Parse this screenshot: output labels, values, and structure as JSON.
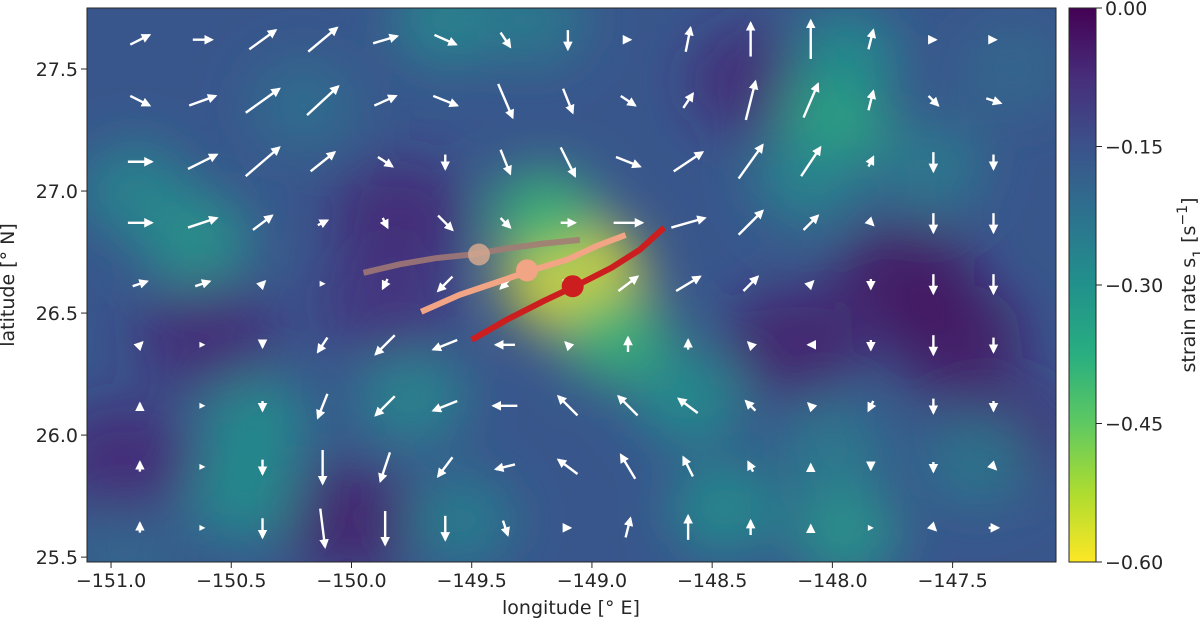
{
  "chart_data": {
    "type": "heatmap",
    "title": "",
    "xlabel": "longitude [° E]",
    "ylabel": "latitude [° N]",
    "xlim": [
      -151.1,
      -147.07
    ],
    "ylim": [
      25.48,
      27.75
    ],
    "xticks": [
      -151.0,
      -150.5,
      -150.0,
      -149.5,
      -149.0,
      -148.5,
      -148.0,
      -147.5
    ],
    "xtick_labels": [
      "−151.0",
      "−150.5",
      "−150.0",
      "−149.5",
      "−149.0",
      "−148.5",
      "−148.0",
      "−147.5"
    ],
    "yticks": [
      25.5,
      26.0,
      26.5,
      27.0,
      27.5
    ],
    "ytick_labels": [
      "25.5",
      "26.0",
      "26.5",
      "27.0",
      "27.5"
    ],
    "colormap": "viridis_r",
    "colorbar": {
      "label": "strain rate s₁ [s⁻¹]",
      "label_parts": [
        "strain rate s",
        "1",
        " [s",
        "−1",
        "]"
      ],
      "range": [
        -0.6,
        0.0
      ],
      "ticks": [
        0.0,
        -0.15,
        -0.3,
        -0.45,
        -0.6
      ],
      "tick_labels": [
        "0.00",
        "−0.15",
        "−0.30",
        "−0.45",
        "−0.60"
      ]
    },
    "heatmap_blobs": [
      {
        "lon": -149.08,
        "lat": 26.65,
        "value": -0.58
      },
      {
        "lon": -149.2,
        "lat": 26.9,
        "value": -0.4
      },
      {
        "lon": -148.9,
        "lat": 26.4,
        "value": -0.4
      },
      {
        "lon": -148.0,
        "lat": 27.3,
        "value": -0.38
      },
      {
        "lon": -147.95,
        "lat": 27.55,
        "value": -0.3
      },
      {
        "lon": -148.1,
        "lat": 27.05,
        "value": -0.28
      },
      {
        "lon": -150.4,
        "lat": 26.05,
        "value": -0.3
      },
      {
        "lon": -150.45,
        "lat": 25.75,
        "value": -0.3
      },
      {
        "lon": -150.65,
        "lat": 26.8,
        "value": -0.32
      },
      {
        "lon": -150.9,
        "lat": 27.0,
        "value": -0.28
      },
      {
        "lon": -149.6,
        "lat": 27.7,
        "value": -0.28
      },
      {
        "lon": -149.25,
        "lat": 27.7,
        "value": -0.25
      },
      {
        "lon": -148.6,
        "lat": 26.15,
        "value": -0.3
      },
      {
        "lon": -148.45,
        "lat": 25.7,
        "value": -0.3
      },
      {
        "lon": -148.0,
        "lat": 25.95,
        "value": -0.25
      },
      {
        "lon": -147.95,
        "lat": 25.6,
        "value": -0.32
      },
      {
        "lon": -149.75,
        "lat": 26.15,
        "value": -0.28
      },
      {
        "lon": -149.55,
        "lat": 25.65,
        "value": -0.26
      },
      {
        "lon": -147.6,
        "lat": 27.1,
        "value": -0.25
      },
      {
        "lon": -147.4,
        "lat": 25.9,
        "value": -0.25
      },
      {
        "lon": -150.2,
        "lat": 27.35,
        "value": -0.22
      },
      {
        "lon": -147.25,
        "lat": 27.5,
        "value": -0.2
      },
      {
        "lon": -150.95,
        "lat": 25.5,
        "value": -0.2
      }
    ],
    "heatmap_lows": [
      {
        "lon": -147.5,
        "lat": 26.4,
        "value": -0.02
      },
      {
        "lon": -147.7,
        "lat": 26.65,
        "value": -0.02
      },
      {
        "lon": -148.15,
        "lat": 26.38,
        "value": -0.04
      },
      {
        "lon": -149.8,
        "lat": 26.9,
        "value": -0.06
      },
      {
        "lon": -148.3,
        "lat": 27.45,
        "value": -0.06
      },
      {
        "lon": -150.95,
        "lat": 25.9,
        "value": -0.06
      },
      {
        "lon": -150.6,
        "lat": 26.4,
        "value": -0.06
      },
      {
        "lon": -150.0,
        "lat": 25.65,
        "value": -0.04
      },
      {
        "lon": -149.85,
        "lat": 26.55,
        "value": -0.08
      },
      {
        "lon": -147.3,
        "lat": 26.0,
        "value": -0.06
      }
    ],
    "vector_field": {
      "lons": [
        -150.88,
        -150.62,
        -150.37,
        -150.12,
        -149.86,
        -149.61,
        -149.36,
        -149.1,
        -148.85,
        -148.6,
        -148.34,
        -148.09,
        -147.84,
        -147.58,
        -147.33
      ],
      "lats": [
        27.62,
        27.37,
        27.12,
        26.87,
        26.62,
        26.37,
        26.12,
        25.87,
        25.62
      ],
      "scale": 0.4,
      "u": [
        [
          0.4,
          0.4,
          0.55,
          0.6,
          0.5,
          0.45,
          0.2,
          0.0,
          0.1,
          0.1,
          0.0,
          0.0,
          0.1,
          0.1,
          0.1
        ],
        [
          0.4,
          0.55,
          0.7,
          0.65,
          0.45,
          0.5,
          0.3,
          0.2,
          0.3,
          0.2,
          0.2,
          0.3,
          0.1,
          0.2,
          0.3
        ],
        [
          0.5,
          0.6,
          0.7,
          0.5,
          0.3,
          0.0,
          0.2,
          0.3,
          0.5,
          0.6,
          0.5,
          0.4,
          0.1,
          0.0,
          0.0
        ],
        [
          0.5,
          0.6,
          0.4,
          0.2,
          0.1,
          0.3,
          0.2,
          0.3,
          0.6,
          0.7,
          0.5,
          0.3,
          0.1,
          0.0,
          0.0
        ],
        [
          0.3,
          0.3,
          0.1,
          0.0,
          -0.1,
          -0.3,
          -0.2,
          0.1,
          0.4,
          0.5,
          0.3,
          0.1,
          0.0,
          0.0,
          0.0
        ],
        [
          0.1,
          0.0,
          0.0,
          -0.2,
          -0.4,
          -0.5,
          -0.4,
          -0.1,
          0.0,
          0.0,
          -0.1,
          -0.1,
          0.0,
          0.0,
          0.0
        ],
        [
          0.0,
          0.0,
          0.0,
          -0.2,
          -0.4,
          -0.5,
          -0.5,
          -0.4,
          -0.4,
          -0.4,
          -0.2,
          -0.1,
          -0.1,
          0.0,
          0.0
        ],
        [
          0.0,
          0.0,
          0.0,
          0.0,
          -0.2,
          -0.3,
          -0.4,
          -0.4,
          -0.3,
          -0.2,
          -0.1,
          0.0,
          0.0,
          0.0,
          0.1
        ],
        [
          0.0,
          0.0,
          0.0,
          0.1,
          0.0,
          0.0,
          0.1,
          0.1,
          0.1,
          0.0,
          0.0,
          0.0,
          0.0,
          0.1,
          0.2
        ]
      ],
      "v": [
        [
          0.2,
          0.0,
          0.4,
          0.5,
          0.15,
          -0.2,
          -0.3,
          -0.4,
          0.0,
          0.5,
          0.7,
          0.8,
          0.4,
          0.0,
          0.0
        ],
        [
          -0.2,
          0.2,
          0.5,
          0.6,
          0.2,
          -0.2,
          -0.7,
          -0.5,
          -0.2,
          0.3,
          0.8,
          0.7,
          0.4,
          -0.2,
          -0.1
        ],
        [
          0.0,
          0.3,
          0.6,
          0.4,
          -0.2,
          -0.3,
          -0.5,
          -0.6,
          -0.2,
          0.4,
          0.7,
          0.6,
          0.2,
          -0.4,
          -0.3
        ],
        [
          0.0,
          0.2,
          0.3,
          0.1,
          -0.2,
          -0.3,
          -0.2,
          0.0,
          0.0,
          0.2,
          0.5,
          0.3,
          -0.1,
          -0.4,
          -0.4
        ],
        [
          0.1,
          0.1,
          0.1,
          0.0,
          -0.2,
          -0.3,
          -0.2,
          0.0,
          0.3,
          0.3,
          0.3,
          0.1,
          -0.2,
          -0.4,
          -0.4
        ],
        [
          0.1,
          0.0,
          -0.1,
          -0.3,
          -0.4,
          -0.2,
          0.0,
          0.1,
          0.3,
          0.2,
          0.1,
          0.0,
          -0.2,
          -0.4,
          -0.3
        ],
        [
          0.1,
          0.0,
          -0.2,
          -0.5,
          -0.4,
          -0.2,
          0.0,
          0.4,
          0.4,
          0.3,
          0.2,
          0.1,
          -0.2,
          -0.3,
          -0.2
        ],
        [
          0.2,
          0.0,
          -0.3,
          -0.7,
          -0.6,
          -0.4,
          -0.1,
          0.3,
          0.5,
          0.4,
          0.2,
          0.1,
          -0.1,
          -0.2,
          -0.1
        ],
        [
          0.2,
          0.0,
          -0.4,
          -0.8,
          -0.7,
          -0.5,
          -0.3,
          0.0,
          0.4,
          0.5,
          0.3,
          0.1,
          0.0,
          -0.1,
          0.0
        ]
      ]
    },
    "series": [
      {
        "color": "#a57a76",
        "opacity": 0.85,
        "lon": [
          -149.95,
          -149.8,
          -149.65,
          -149.5,
          -149.35,
          -149.2,
          -149.05
        ],
        "lat": [
          26.665,
          26.7,
          26.725,
          26.74,
          26.765,
          26.785,
          26.8
        ],
        "marker": {
          "lon": -149.47,
          "lat": 26.74,
          "color": "#d3a890"
        }
      },
      {
        "color": "#f2a585",
        "opacity": 1.0,
        "lon": [
          -149.71,
          -149.55,
          -149.4,
          -149.25,
          -149.1,
          -148.98,
          -148.86
        ],
        "lat": [
          26.505,
          26.575,
          26.625,
          26.675,
          26.72,
          26.775,
          26.82
        ],
        "marker": {
          "lon": -149.27,
          "lat": 26.675,
          "color": "#f2a585"
        }
      },
      {
        "color": "#cc1e1e",
        "opacity": 1.0,
        "lon": [
          -149.5,
          -149.35,
          -149.2,
          -149.06,
          -148.92,
          -148.8,
          -148.7
        ],
        "lat": [
          26.39,
          26.475,
          26.55,
          26.615,
          26.685,
          26.76,
          26.85
        ],
        "marker": {
          "lon": -149.08,
          "lat": 26.61,
          "color": "#cc1e1e"
        }
      }
    ]
  }
}
